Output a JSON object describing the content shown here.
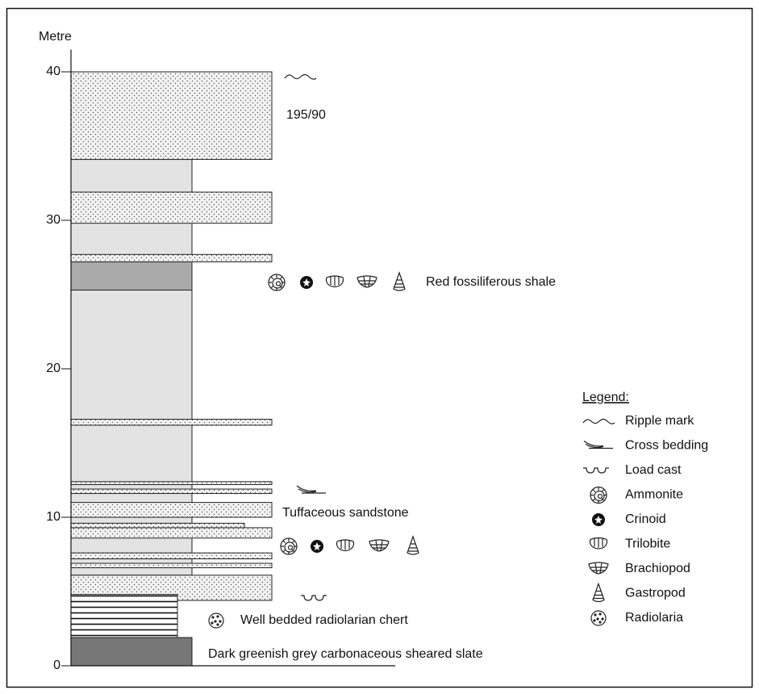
{
  "axis": {
    "label": "Metre",
    "ylim": [
      0,
      41.5
    ],
    "yticks": [
      0,
      10,
      20,
      30,
      40
    ]
  },
  "layers": {
    "background": [
      [
        6.1,
        34.1
      ]
    ],
    "sandstone": [
      [
        4.4,
        6.1
      ],
      [
        6.6,
        6.9
      ],
      [
        7.2,
        7.6
      ],
      [
        8.6,
        9.3
      ],
      [
        10.0,
        11.0
      ],
      [
        11.6,
        11.9
      ],
      [
        12.2,
        12.4
      ],
      [
        16.2,
        16.6
      ],
      [
        27.2,
        27.7
      ],
      [
        29.8,
        31.9
      ],
      [
        34.1,
        40.0
      ]
    ],
    "sandstone_narrow": [
      [
        9.3,
        9.6
      ]
    ],
    "shale": [
      [
        25.3,
        27.2
      ]
    ],
    "chert": [
      [
        1.9,
        4.8
      ]
    ],
    "slate": [
      [
        0,
        1.9
      ]
    ]
  },
  "annotations": [
    "195/90",
    "Red fossiliferous shale",
    "Tuffaceous sandstone",
    "Well bedded radiolarian chert",
    "Dark greenish grey carbonaceous  sheared slate"
  ],
  "legend": {
    "title": "Legend:",
    "items": [
      "Ripple mark",
      "Cross bedding",
      "Load cast",
      "Ammonite",
      "Crinoid",
      "Trilobite",
      "Brachiopod",
      "Gastropod",
      "Radiolaria"
    ]
  }
}
